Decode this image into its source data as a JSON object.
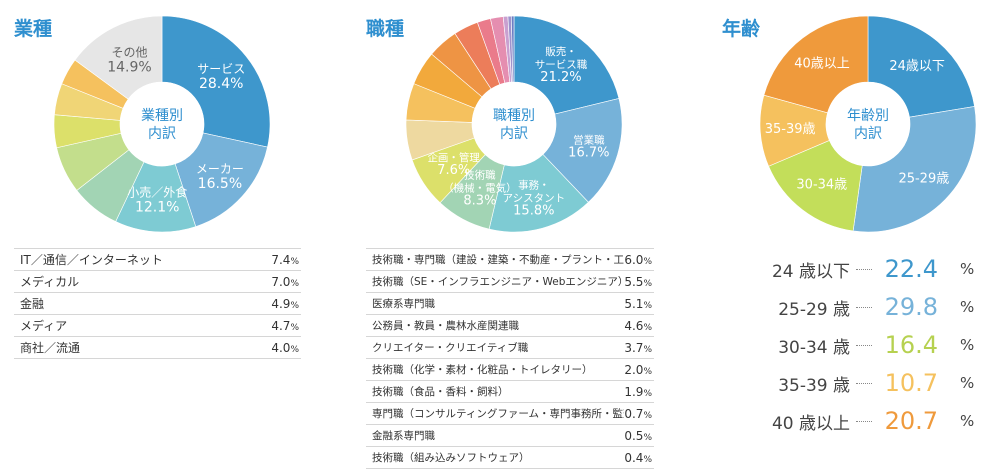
{
  "sections": {
    "industry": {
      "title": "業種"
    },
    "job": {
      "title": "職種"
    },
    "age": {
      "title": "年齢"
    }
  },
  "chart_data": [
    {
      "type": "pie",
      "title": "業種",
      "center_label": [
        "業種別",
        "内訳"
      ],
      "slices": [
        {
          "name": "サービス",
          "value": 28.4,
          "color": "#3e97cc",
          "label": [
            "サービス",
            "28.4%"
          ],
          "label_color": "#ffffff"
        },
        {
          "name": "メーカー",
          "value": 16.5,
          "color": "#76b2d9",
          "label": [
            "メーカー",
            "16.5%"
          ],
          "label_color": "#ffffff"
        },
        {
          "name": "小売／外食",
          "value": 12.1,
          "color": "#7ecbd3",
          "label": [
            "小売／外食",
            "12.1%"
          ],
          "label_color": "#ffffff"
        },
        {
          "name": "IT／通信／インターネット",
          "value": 7.4,
          "color": "#a2d4b4",
          "label": null
        },
        {
          "name": "メディカル",
          "value": 7.0,
          "color": "#c3de8c",
          "label": null
        },
        {
          "name": "金融",
          "value": 4.9,
          "color": "#dce06a",
          "label": null
        },
        {
          "name": "メディア",
          "value": 4.7,
          "color": "#f0d576",
          "label": null
        },
        {
          "name": "商社／流通",
          "value": 4.0,
          "color": "#f5c15e",
          "label": null
        },
        {
          "name": "その他",
          "value": 14.9,
          "color": "#e6e6e6",
          "label": [
            "その他",
            "14.9%"
          ],
          "label_color": "#666666"
        }
      ],
      "table": [
        {
          "name": "IT／通信／インターネット",
          "value": "7.4"
        },
        {
          "name": "メディカル",
          "value": "7.0"
        },
        {
          "name": "金融",
          "value": "4.9"
        },
        {
          "name": "メディア",
          "value": "4.7"
        },
        {
          "name": "商社／流通",
          "value": "4.0"
        }
      ]
    },
    {
      "type": "pie",
      "title": "職種",
      "center_label": [
        "職種別",
        "内訳"
      ],
      "slices": [
        {
          "name": "販売・サービス職",
          "value": 21.2,
          "color": "#3e97cc",
          "label": [
            "販売・",
            "サービス職",
            "21.2%"
          ],
          "label_color": "#ffffff"
        },
        {
          "name": "営業職",
          "value": 16.7,
          "color": "#76b2d9",
          "label": [
            "営業職",
            "16.7%"
          ],
          "label_color": "#ffffff"
        },
        {
          "name": "事務・アシスタント",
          "value": 15.8,
          "color": "#7ecbd3",
          "label": [
            "事務・",
            "アシスタント",
            "15.8%"
          ],
          "label_color": "#ffffff"
        },
        {
          "name": "技術職（機械・電気）",
          "value": 8.3,
          "color": "#a2d4b4",
          "label": [
            "技術職",
            "（機械・電気）",
            "8.3%"
          ],
          "label_color": "#ffffff"
        },
        {
          "name": "企画・管理",
          "value": 7.6,
          "color": "#dce06a",
          "label": [
            "企画・管理",
            "7.6%"
          ],
          "label_color": "#ffffff"
        },
        {
          "name": "技術職・専門職（建設・建築・不動産・プラント・工場）",
          "value": 6.0,
          "color": "#eed9a0",
          "label": null
        },
        {
          "name": "技術職（SE・インフラエンジニア・Webエンジニア）",
          "value": 5.5,
          "color": "#f5c15e",
          "label": null
        },
        {
          "name": "医療系専門職",
          "value": 5.1,
          "color": "#f2a93c",
          "label": null
        },
        {
          "name": "公務員・教員・農林水産関連職",
          "value": 4.6,
          "color": "#ee9444",
          "label": null
        },
        {
          "name": "クリエイター・クリエイティブ職",
          "value": 3.7,
          "color": "#ec7d5a",
          "label": null
        },
        {
          "name": "技術職（化学・素材・化粧品・トイレタリー）",
          "value": 2.0,
          "color": "#ea7b8b",
          "label": null
        },
        {
          "name": "技術職（食品・香料・飼料）",
          "value": 1.9,
          "color": "#e58eb0",
          "label": null
        },
        {
          "name": "専門職（コンサルティングファーム・専門事務所・監査法人）",
          "value": 0.7,
          "color": "#c9a0d0",
          "label": null
        },
        {
          "name": "金融系専門職",
          "value": 0.5,
          "color": "#9e92cc",
          "label": null
        },
        {
          "name": "技術職（組み込みソフトウェア）",
          "value": 0.4,
          "color": "#6b7fc4",
          "label": null
        }
      ],
      "table": [
        {
          "name": "技術職・専門職（建設・建築・不動産・プラント・工場）",
          "value": "6.0"
        },
        {
          "name": "技術職（SE・インフラエンジニア・Webエンジニア）",
          "value": "5.5"
        },
        {
          "name": "医療系専門職",
          "value": "5.1"
        },
        {
          "name": "公務員・教員・農林水産関連職",
          "value": "4.6"
        },
        {
          "name": "クリエイター・クリエイティブ職",
          "value": "3.7"
        },
        {
          "name": "技術職（化学・素材・化粧品・トイレタリー）",
          "value": "2.0"
        },
        {
          "name": "技術職（食品・香料・飼料）",
          "value": "1.9"
        },
        {
          "name": "専門職（コンサルティングファーム・専門事務所・監査法人）",
          "value": "0.7"
        },
        {
          "name": "金融系専門職",
          "value": "0.5"
        },
        {
          "name": "技術職（組み込みソフトウェア）",
          "value": "0.4"
        }
      ]
    },
    {
      "type": "pie",
      "title": "年齢",
      "center_label": [
        "年齢別",
        "内訳"
      ],
      "slices": [
        {
          "name": "24歳以下",
          "value": 22.4,
          "color": "#3e97cc",
          "label": [
            "24歳以下"
          ],
          "label_color": "#ffffff"
        },
        {
          "name": "25-29歳",
          "value": 29.8,
          "color": "#76b2d9",
          "label": [
            "25-29歳"
          ],
          "label_color": "#ffffff"
        },
        {
          "name": "30-34歳",
          "value": 16.4,
          "color": "#c3de5a",
          "label": [
            "30-34歳"
          ],
          "label_color": "#ffffff"
        },
        {
          "name": "35-39歳",
          "value": 10.7,
          "color": "#f5c15e",
          "label": [
            "35-39歳"
          ],
          "label_color": "#ffffff"
        },
        {
          "name": "40歳以上",
          "value": 20.7,
          "color": "#ef9a3c",
          "label": [
            "40歳以上"
          ],
          "label_color": "#ffffff"
        }
      ],
      "table": [
        {
          "name": "24 歳以下",
          "value": "22.4",
          "color": "#3e97cc"
        },
        {
          "name": "25-29  歳",
          "value": "29.8",
          "color": "#76b2d9"
        },
        {
          "name": "30-34  歳",
          "value": "16.4",
          "color": "#b6d150"
        },
        {
          "name": "35-39  歳",
          "value": "10.7",
          "color": "#f5c15e"
        },
        {
          "name": "40 歳以上",
          "value": "20.7",
          "color": "#ef9a3c"
        }
      ]
    }
  ],
  "pct_sign": "%"
}
